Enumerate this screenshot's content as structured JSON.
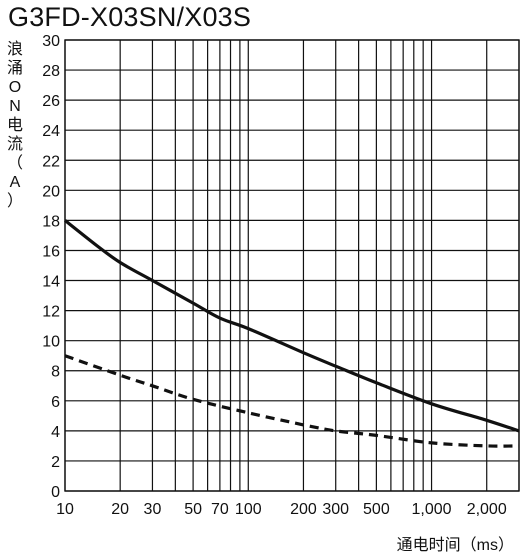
{
  "chart_data": {
    "type": "line",
    "title": "G3FD-X03SN/X03S",
    "ylabel": "浪涌ON电流（A）",
    "xlabel": "通电时间（ms）",
    "xscale": "log",
    "xlim": [
      10,
      3000
    ],
    "ylim": [
      0,
      30
    ],
    "grid": true,
    "xticks": [
      {
        "value": 10,
        "label": "10"
      },
      {
        "value": 20,
        "label": "20"
      },
      {
        "value": 30,
        "label": "30"
      },
      {
        "value": 50,
        "label": "50"
      },
      {
        "value": 70,
        "label": "70"
      },
      {
        "value": 100,
        "label": "100"
      },
      {
        "value": 200,
        "label": "200"
      },
      {
        "value": 300,
        "label": "300"
      },
      {
        "value": 500,
        "label": "500"
      },
      {
        "value": 1000,
        "label": "1,000"
      },
      {
        "value": 2000,
        "label": "2,000"
      }
    ],
    "xgrid": [
      10,
      20,
      30,
      40,
      50,
      60,
      70,
      80,
      90,
      100,
      200,
      300,
      400,
      500,
      600,
      700,
      800,
      900,
      1000,
      2000,
      3000
    ],
    "yticks": [
      0,
      2,
      4,
      6,
      8,
      10,
      12,
      14,
      16,
      18,
      20,
      22,
      24,
      26,
      28,
      30
    ],
    "series": [
      {
        "name": "",
        "style": "solid",
        "color": "#111111",
        "x": [
          10,
          15,
          20,
          30,
          50,
          70,
          100,
          200,
          300,
          500,
          1000,
          2000,
          3000
        ],
        "y": [
          18,
          16.3,
          15.2,
          14,
          12.5,
          11.5,
          10.8,
          9.2,
          8.3,
          7.2,
          5.8,
          4.7,
          4
        ]
      },
      {
        "name": "",
        "style": "dashed",
        "color": "#111111",
        "x": [
          10,
          20,
          30,
          50,
          100,
          200,
          300,
          500,
          1000,
          2000,
          3000
        ],
        "y": [
          9,
          7.7,
          7,
          6.1,
          5.2,
          4.4,
          4,
          3.7,
          3.2,
          3.0,
          3.0
        ]
      }
    ]
  }
}
